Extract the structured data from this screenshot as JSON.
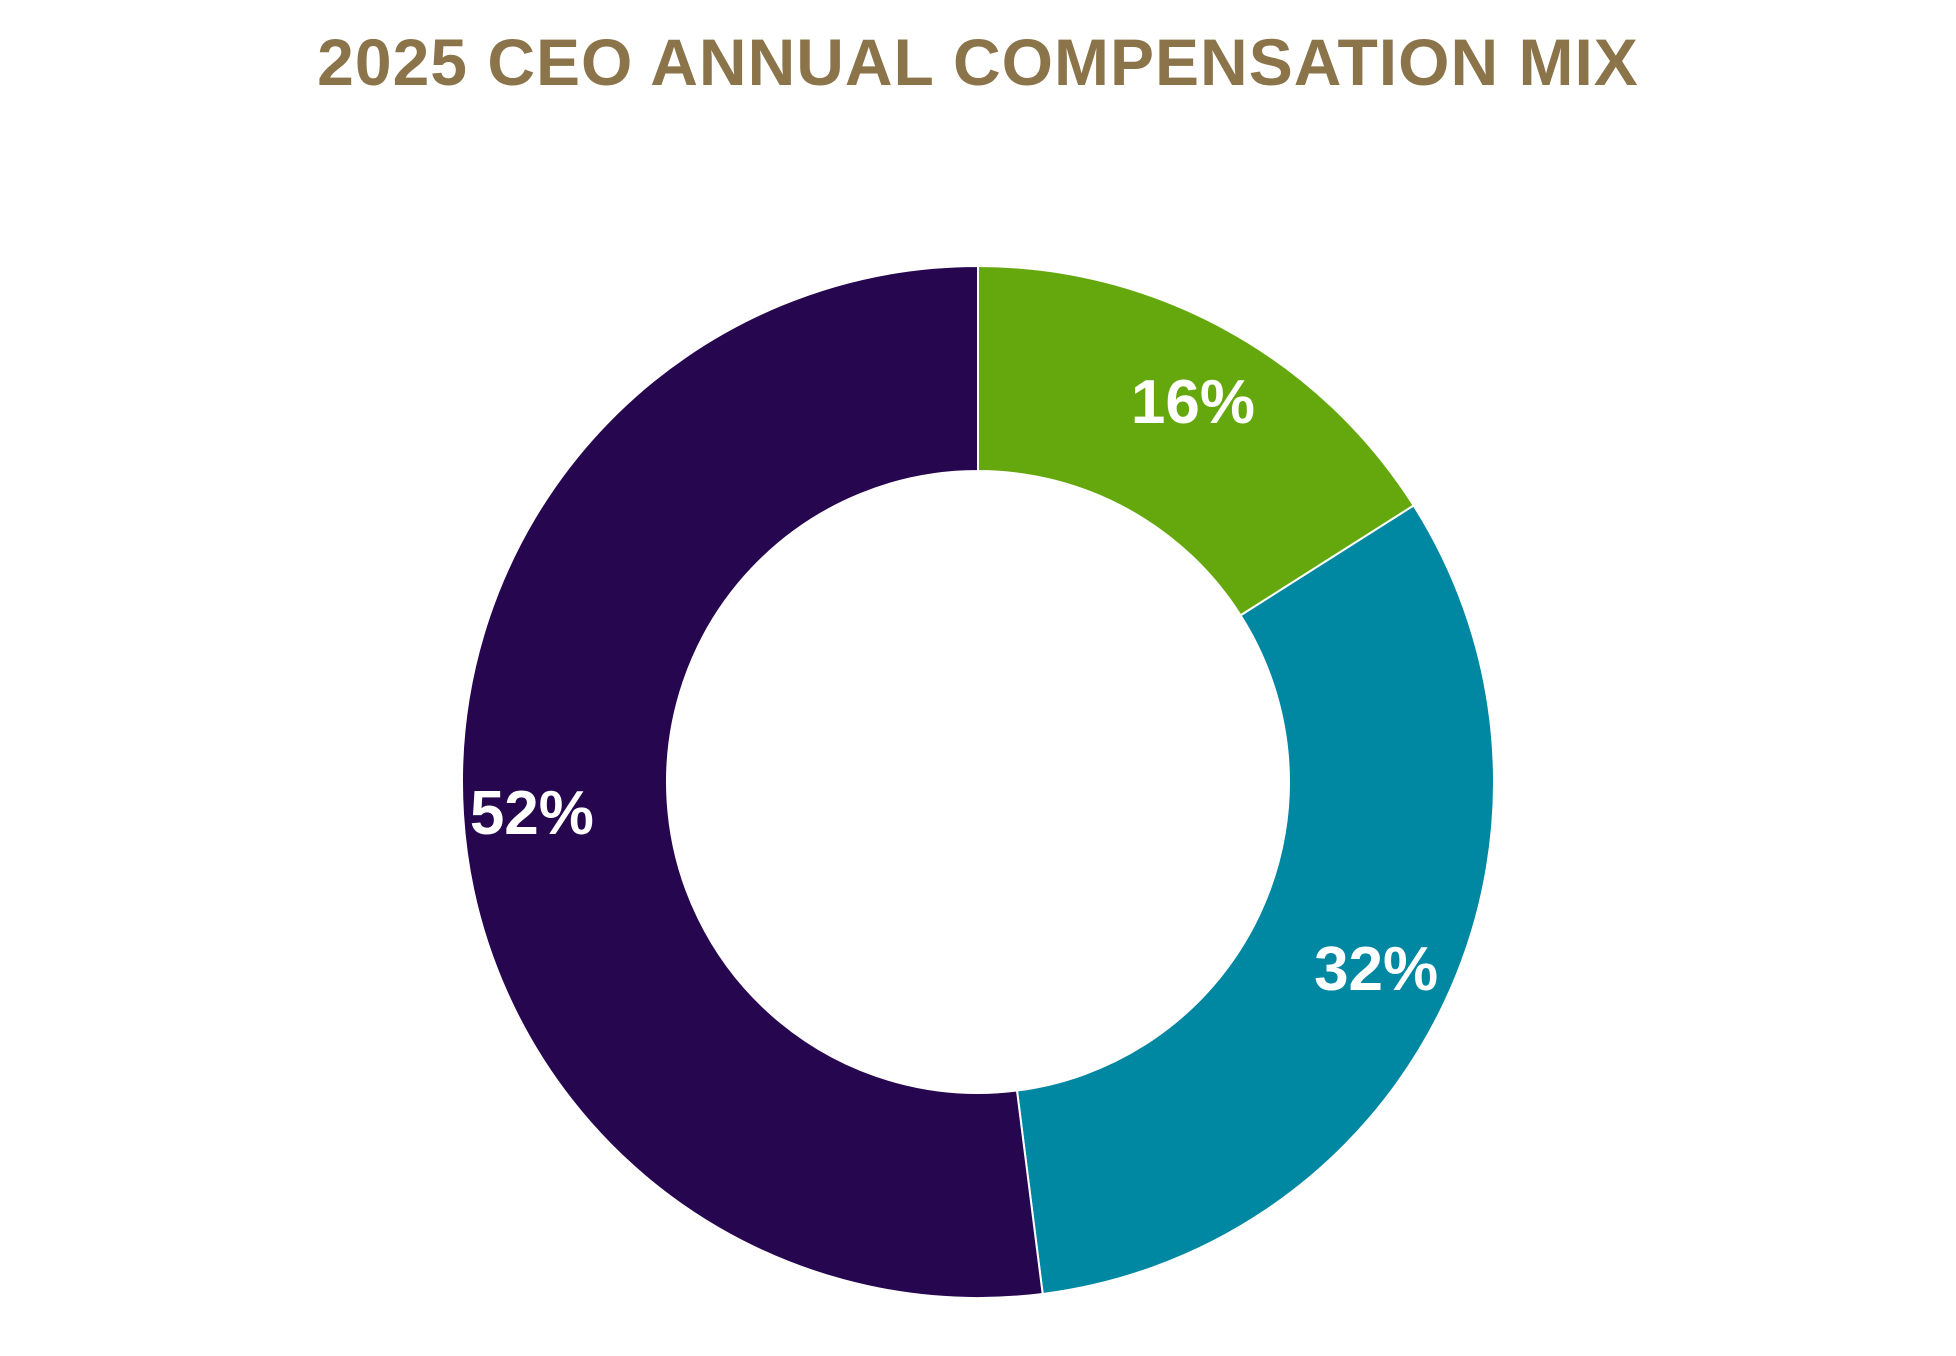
{
  "chart_data": {
    "type": "pie",
    "variant": "donut",
    "title": "2025 CEO ANNUAL COMPENSATION MIX",
    "start": "12 o'clock, clockwise",
    "slices": [
      {
        "value": 16,
        "label": "16%",
        "color": "#65a80e"
      },
      {
        "value": 32,
        "label": "32%",
        "color": "#0087a1"
      },
      {
        "value": 52,
        "label": "52%",
        "color": "#26064f"
      }
    ]
  }
}
